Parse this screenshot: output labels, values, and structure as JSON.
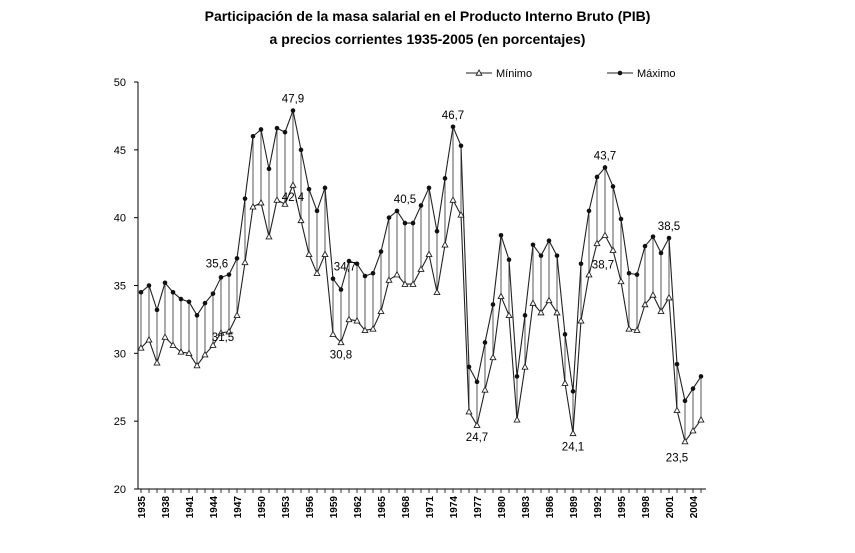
{
  "chart_data": {
    "type": "line",
    "title": "Participación de la masa salarial en el Producto Interno Bruto (PIB)",
    "subtitle": "a precios corrientes 1935-2005 (en porcentajes)",
    "xlabel": "",
    "ylabel": "",
    "ylim": [
      20,
      50
    ],
    "yticks": [
      "50",
      "45",
      "40",
      "35",
      "30",
      "25",
      "20"
    ],
    "xticks": [
      "1935",
      "1938",
      "1941",
      "1944",
      "1947",
      "1950",
      "1953",
      "1956",
      "1959",
      "1962",
      "1965",
      "1968",
      "1971",
      "1974",
      "1977",
      "1980",
      "1983",
      "1986",
      "1989",
      "1992",
      "1995",
      "1998",
      "2001",
      "2004"
    ],
    "legend_position": "top-right",
    "grid": false,
    "x": [
      1935,
      1936,
      1937,
      1938,
      1939,
      1940,
      1941,
      1942,
      1943,
      1944,
      1945,
      1946,
      1947,
      1948,
      1949,
      1950,
      1951,
      1952,
      1953,
      1954,
      1955,
      1956,
      1957,
      1958,
      1959,
      1960,
      1961,
      1962,
      1963,
      1964,
      1965,
      1966,
      1967,
      1968,
      1969,
      1970,
      1971,
      1972,
      1973,
      1974,
      1975,
      1976,
      1977,
      1978,
      1979,
      1980,
      1981,
      1982,
      1983,
      1984,
      1985,
      1986,
      1987,
      1988,
      1989,
      1990,
      1991,
      1992,
      1993,
      1994,
      1995,
      1996,
      1997,
      1998,
      1999,
      2000,
      2001,
      2002,
      2003,
      2004,
      2005
    ],
    "series": [
      {
        "name": "Mínimo",
        "marker": "triangle",
        "values": [
          30.4,
          31.0,
          29.3,
          31.2,
          30.6,
          30.1,
          30.0,
          29.1,
          29.9,
          30.6,
          31.5,
          31.6,
          32.8,
          36.7,
          40.8,
          41.1,
          38.6,
          41.3,
          41.0,
          42.4,
          39.8,
          37.3,
          35.9,
          37.3,
          31.4,
          30.8,
          32.5,
          32.4,
          31.7,
          31.8,
          33.1,
          35.4,
          35.8,
          35.1,
          35.1,
          36.2,
          37.3,
          34.5,
          38.0,
          41.3,
          40.2,
          25.7,
          24.7,
          27.3,
          29.7,
          34.2,
          32.8,
          25.1,
          29.0,
          33.7,
          33.0,
          33.9,
          33.0,
          27.8,
          24.1,
          32.4,
          35.8,
          38.1,
          38.7,
          37.6,
          35.3,
          31.8,
          31.7,
          33.6,
          34.3,
          33.1,
          34.1,
          25.8,
          23.5,
          24.3,
          25.1
        ]
      },
      {
        "name": "Máximo",
        "marker": "circle",
        "values": [
          34.5,
          35.0,
          33.2,
          35.2,
          34.5,
          34.0,
          33.8,
          32.8,
          33.7,
          34.4,
          35.6,
          35.8,
          37.0,
          41.4,
          46.0,
          46.5,
          43.6,
          46.6,
          46.3,
          47.9,
          45.0,
          42.1,
          40.5,
          42.2,
          35.5,
          34.7,
          36.8,
          36.6,
          35.7,
          35.9,
          37.5,
          40.0,
          40.5,
          39.6,
          39.6,
          40.9,
          42.2,
          39.0,
          42.9,
          46.7,
          45.3,
          29.0,
          27.9,
          30.8,
          33.6,
          38.7,
          36.9,
          28.3,
          32.8,
          38.0,
          37.2,
          38.3,
          37.2,
          31.4,
          27.2,
          36.6,
          40.5,
          43.0,
          43.7,
          42.3,
          39.9,
          35.9,
          35.8,
          37.9,
          38.6,
          37.4,
          38.5,
          29.2,
          26.5,
          27.4,
          28.3
        ]
      }
    ],
    "annotations": [
      {
        "text": "47,9",
        "x": 1954,
        "y": 47.9
      },
      {
        "text": "46,7",
        "x": 1974,
        "y": 46.7
      },
      {
        "text": "43,7",
        "x": 1993,
        "y": 43.7
      },
      {
        "text": "42,4",
        "x": 1954,
        "y": 42.4
      },
      {
        "text": "40,5",
        "x": 1968,
        "y": 40.5
      },
      {
        "text": "38,7",
        "x": 1993,
        "y": 38.7
      },
      {
        "text": "38,5",
        "x": 2001,
        "y": 38.5
      },
      {
        "text": "35,6",
        "x": 1945,
        "y": 35.6
      },
      {
        "text": "34,7",
        "x": 1960,
        "y": 34.7
      },
      {
        "text": "31,5",
        "x": 1945,
        "y": 31.5
      },
      {
        "text": "30,8",
        "x": 1960,
        "y": 30.8
      },
      {
        "text": "24,7",
        "x": 1977,
        "y": 24.7
      },
      {
        "text": "24,1",
        "x": 1989,
        "y": 24.1
      },
      {
        "text": "23,5",
        "x": 2002,
        "y": 23.5
      }
    ]
  }
}
